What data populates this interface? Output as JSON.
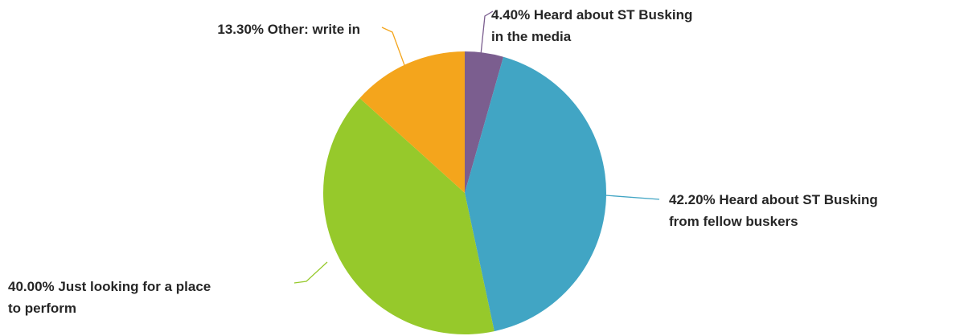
{
  "chart_data": {
    "type": "pie",
    "start_angle_deg": 0,
    "direction": "clockwise",
    "legend": "none",
    "slices": [
      {
        "label": "Heard about ST Busking in the media",
        "value": 4.4,
        "value_text": "4.40%",
        "text_lines": [
          "4.40% Heard about ST Busking",
          "in the media"
        ],
        "color": "#7b5e8f"
      },
      {
        "label": "Heard about ST Busking from fellow buskers",
        "value": 42.2,
        "value_text": "42.20%",
        "text_lines": [
          "42.20% Heard about ST Busking",
          "from fellow buskers"
        ],
        "color": "#41a5c4"
      },
      {
        "label": "Just looking for a place to perform",
        "value": 40.0,
        "value_text": "40.00%",
        "text_lines": [
          "40.00% Just looking for a place",
          "to perform"
        ],
        "color": "#96c92b"
      },
      {
        "label": "Other: write in",
        "value": 13.3,
        "value_text": "13.30%",
        "text_lines": [
          "13.30% Other: write in"
        ],
        "color": "#f4a51c"
      }
    ]
  }
}
